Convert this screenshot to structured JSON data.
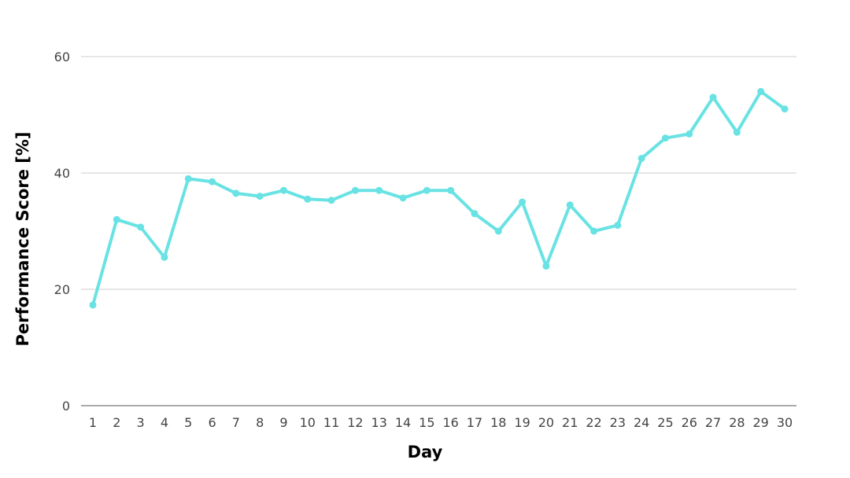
{
  "chart_data": {
    "type": "line",
    "xlabel": "Day",
    "ylabel": "Performance Score [%]",
    "ylim": [
      0,
      60
    ],
    "yticks": [
      0,
      20,
      40,
      60
    ],
    "grid": true,
    "x": [
      1,
      2,
      3,
      4,
      5,
      6,
      7,
      8,
      9,
      10,
      11,
      12,
      13,
      14,
      15,
      16,
      17,
      18,
      19,
      20,
      21,
      22,
      23,
      24,
      25,
      26,
      27,
      28,
      29,
      30
    ],
    "series": [
      {
        "values": [
          17.3,
          32.0,
          30.7,
          25.5,
          39.0,
          38.5,
          36.5,
          36.0,
          37.0,
          35.5,
          35.3,
          37.0,
          37.0,
          35.7,
          37.0,
          37.0,
          33.0,
          30.0,
          35.0,
          24.0,
          34.5,
          30.0,
          31.0,
          42.5,
          46.0,
          46.7,
          53.0,
          47.0,
          54.0,
          51.0
        ],
        "color": "#69e2e3"
      }
    ]
  }
}
